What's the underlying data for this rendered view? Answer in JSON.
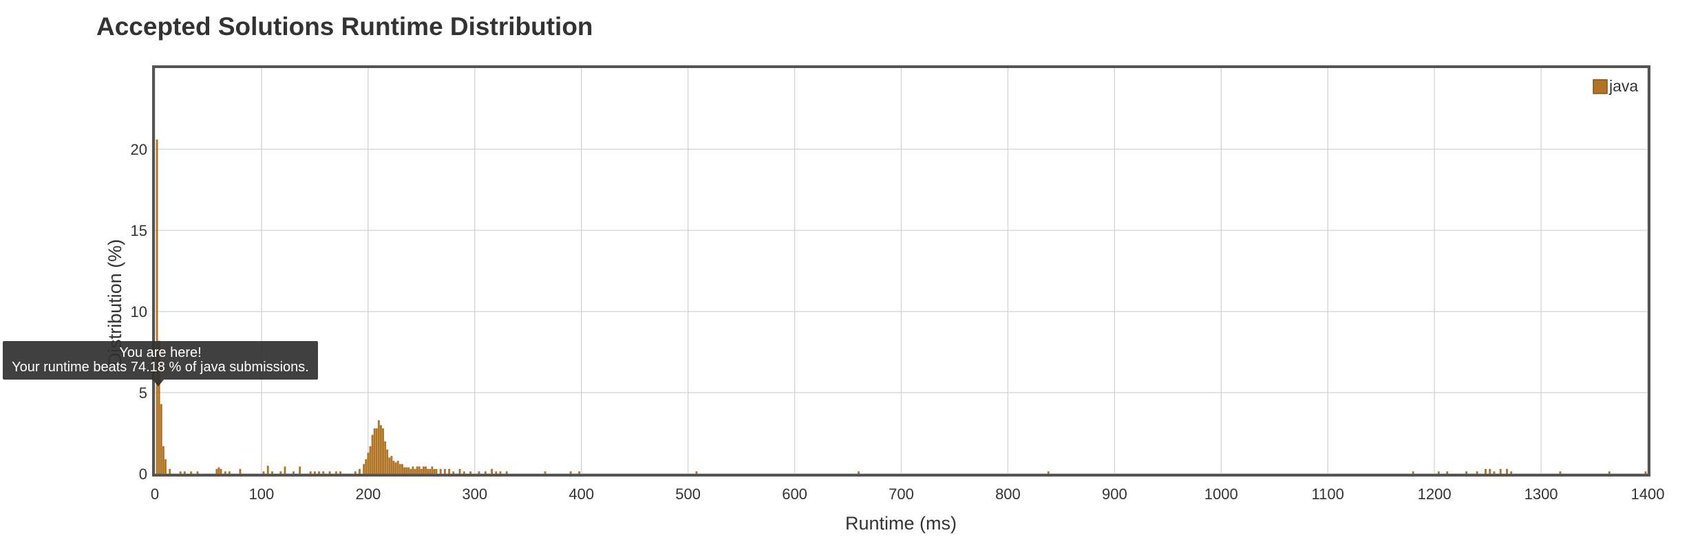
{
  "chart_data": {
    "type": "bar",
    "title": "Accepted Solutions Runtime Distribution",
    "xlabel": "Runtime (ms)",
    "ylabel": "Distribution (%)",
    "xlim": [
      0,
      1400
    ],
    "ylim": [
      0,
      25
    ],
    "xticks": [
      0,
      100,
      200,
      300,
      400,
      500,
      600,
      700,
      800,
      900,
      1000,
      1100,
      1200,
      1300,
      1400
    ],
    "yticks": [
      0,
      5,
      10,
      15,
      20
    ],
    "grid": true,
    "legend_position": "top-right",
    "bin_width_ms": 2,
    "series": [
      {
        "name": "java",
        "color": "#b07424",
        "x": [
          2,
          4,
          6,
          8,
          10,
          14,
          24,
          28,
          34,
          40,
          58,
          60,
          62,
          66,
          70,
          80,
          102,
          106,
          110,
          118,
          122,
          130,
          136,
          146,
          150,
          154,
          158,
          164,
          170,
          174,
          188,
          192,
          196,
          198,
          200,
          202,
          204,
          206,
          208,
          210,
          212,
          214,
          216,
          218,
          220,
          222,
          224,
          226,
          228,
          230,
          232,
          234,
          236,
          238,
          240,
          242,
          244,
          246,
          248,
          250,
          252,
          254,
          256,
          258,
          260,
          262,
          264,
          268,
          272,
          276,
          280,
          286,
          290,
          296,
          304,
          310,
          316,
          320,
          324,
          330,
          366,
          390,
          398,
          508,
          660,
          838,
          1180,
          1204,
          1212,
          1230,
          1240,
          1248,
          1252,
          1256,
          1262,
          1268,
          1272,
          1318,
          1364,
          1398
        ],
        "values": [
          20.6,
          8.2,
          4.3,
          1.7,
          0.9,
          0.3,
          0.15,
          0.15,
          0.15,
          0.15,
          0.3,
          0.4,
          0.3,
          0.15,
          0.15,
          0.3,
          0.15,
          0.5,
          0.15,
          0.15,
          0.45,
          0.15,
          0.45,
          0.15,
          0.15,
          0.15,
          0.15,
          0.15,
          0.15,
          0.15,
          0.15,
          0.3,
          0.6,
          0.9,
          1.3,
          1.7,
          2.4,
          2.8,
          2.8,
          3.3,
          3.0,
          2.8,
          2.0,
          1.5,
          1.0,
          1.1,
          0.8,
          0.7,
          0.8,
          0.6,
          0.6,
          0.4,
          0.4,
          0.4,
          0.3,
          0.45,
          0.3,
          0.45,
          0.45,
          0.3,
          0.45,
          0.45,
          0.3,
          0.3,
          0.45,
          0.3,
          0.3,
          0.3,
          0.3,
          0.3,
          0.15,
          0.3,
          0.15,
          0.15,
          0.15,
          0.15,
          0.3,
          0.15,
          0.15,
          0.15,
          0.15,
          0.15,
          0.15,
          0.15,
          0.15,
          0.15,
          0.15,
          0.15,
          0.15,
          0.15,
          0.15,
          0.3,
          0.3,
          0.15,
          0.3,
          0.3,
          0.15,
          0.15,
          0.15,
          0.15
        ]
      }
    ],
    "tooltip": {
      "line1": "You are here!",
      "line2": "Your runtime beats 74.18 % of java submissions."
    }
  }
}
